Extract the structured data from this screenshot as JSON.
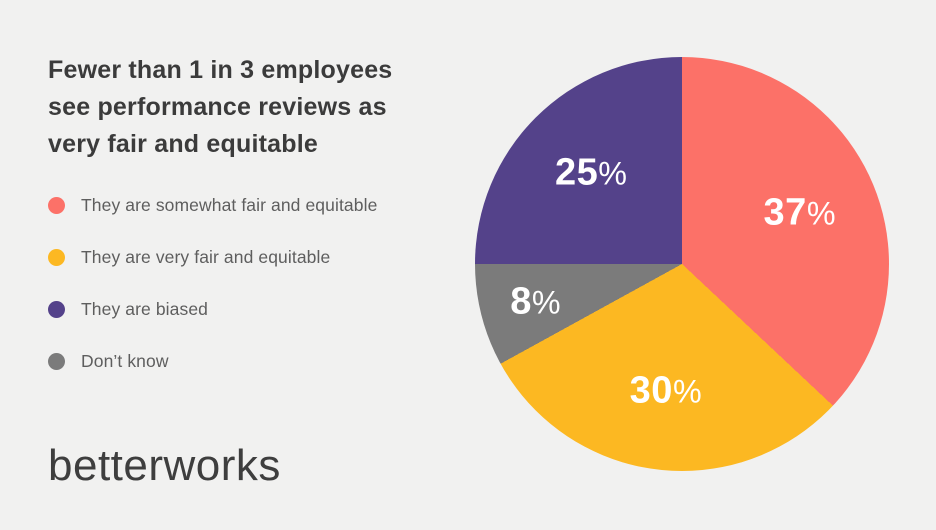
{
  "title": "Fewer than 1 in 3 employees\nsee performance reviews as\nvery fair and equitable",
  "logo_text": "betterworks",
  "colors": {
    "background": "#f1f1f0",
    "title_text": "#3b3b3b",
    "legend_text": "#5e5e5e",
    "percent_text": "#ffffff",
    "coral": "#fc7168",
    "yellow": "#fcb822",
    "purple": "#54428a",
    "gray": "#7b7b7b"
  },
  "legend": [
    {
      "label": "They are somewhat fair and equitable",
      "color": "#fc7168"
    },
    {
      "label": "They are very fair and equitable",
      "color": "#fcb822"
    },
    {
      "label": "They are biased",
      "color": "#54428a"
    },
    {
      "label": "Don’t know",
      "color": "#7b7b7b"
    }
  ],
  "chart_data": {
    "type": "pie",
    "title": "Fewer than 1 in 3 employees see performance reviews as very fair and equitable",
    "start_angle_deg": 0,
    "direction": "clockwise",
    "value_suffix": "%",
    "legend_position": "left",
    "slices": [
      {
        "label": "They are somewhat fair and equitable",
        "value": 37,
        "color": "#fc7168"
      },
      {
        "label": "They are very fair and equitable",
        "value": 30,
        "color": "#fcb822"
      },
      {
        "label": "Don’t know",
        "value": 8,
        "color": "#7b7b7b"
      },
      {
        "label": "They are biased",
        "value": 25,
        "color": "#54428a"
      }
    ]
  }
}
